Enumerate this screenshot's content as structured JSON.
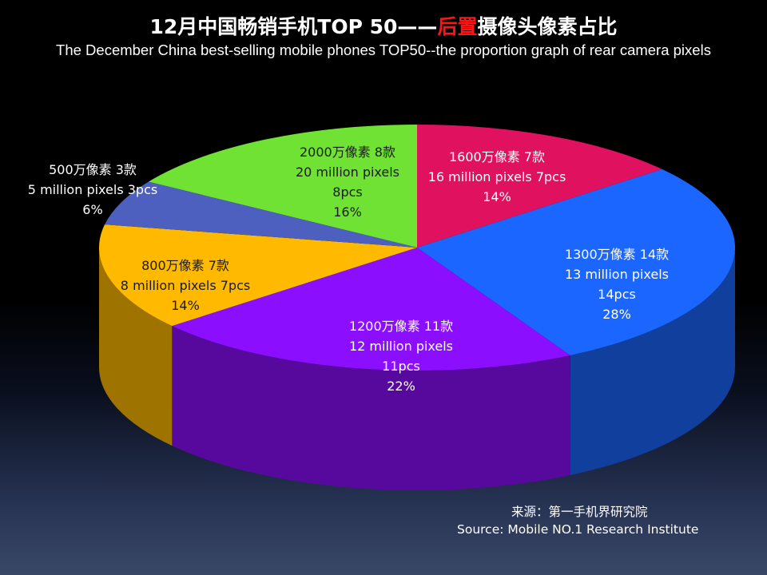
{
  "title": {
    "cn_before": "12月中国畅销手机TOP 50——",
    "cn_highlight": "后置",
    "cn_after": "摄像头像素占比",
    "en": "The December China best-selling mobile phones TOP50--the proportion graph of rear camera pixels"
  },
  "source": {
    "cn": "来源：第一手机界研究院",
    "en": "Source: Mobile NO.1 Research Institute"
  },
  "chart_data": {
    "type": "pie",
    "title": "12月中国畅销手机TOP 50——后置摄像头像素占比",
    "subtitle": "The December China best-selling mobile phones TOP50--the proportion graph of rear camera pixels",
    "total": 50,
    "slices": [
      {
        "id": "16mp",
        "count": 7,
        "percent": 14,
        "color": "#e0115f",
        "label_lines": [
          "1600万像素 7款",
          "16 million pixels 7pcs",
          "14%"
        ]
      },
      {
        "id": "13mp",
        "count": 14,
        "percent": 28,
        "color": "#1a66ff",
        "label_lines": [
          "1300万像素 14款",
          "13 million pixels",
          "14pcs",
          "28%"
        ]
      },
      {
        "id": "12mp",
        "count": 11,
        "percent": 22,
        "color": "#8c0eff",
        "label_lines": [
          "1200万像素 11款",
          "12 million pixels",
          "11pcs",
          "22%"
        ]
      },
      {
        "id": "8mp",
        "count": 7,
        "percent": 14,
        "color": "#ffba00",
        "label_lines": [
          "800万像素 7款",
          "8 million pixels 7pcs",
          "14%"
        ]
      },
      {
        "id": "5mp",
        "count": 3,
        "percent": 6,
        "color": "#4d5fbf",
        "label_lines": [
          "500万像素 3款",
          "5 million pixels 3pcs",
          "6%"
        ]
      },
      {
        "id": "20mp",
        "count": 8,
        "percent": 16,
        "color": "#6fe234",
        "label_lines": [
          "2000万像素 8款",
          "20 million pixels",
          "8pcs",
          "16%"
        ]
      }
    ]
  }
}
